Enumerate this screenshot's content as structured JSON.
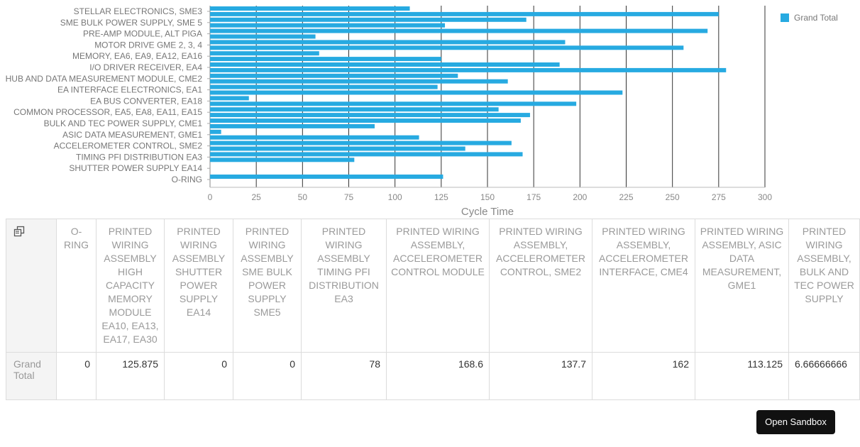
{
  "chart_data": {
    "type": "bar",
    "orientation": "horizontal",
    "xlabel": "Cycle Time",
    "xlim": [
      0,
      300
    ],
    "xticks": [
      0,
      25,
      50,
      75,
      100,
      125,
      150,
      175,
      200,
      225,
      250,
      275,
      300
    ],
    "grid": "vertical",
    "legend": "top-right",
    "bar_color": "#27aae1",
    "y_tick_labels": [
      "STELLAR ELECTRONICS, SME3",
      "SME BULK POWER SUPPLY, SME 5",
      "PRE-AMP MODULE, ALT PIGA",
      "MOTOR DRIVE GME 2, 3, 4",
      "MEMORY, EA6, EA9, EA12, EA16",
      "I/O DRIVER RECEIVER, EA4",
      "HUB AND DATA MEASUREMENT MODULE, CME2",
      "EA INTERFACE ELECTRONICS, EA1",
      "EA BUS CONVERTER, EA18",
      "COMMON PROCESSOR, EA5, EA8, EA11, EA15",
      "BULK AND TEC POWER SUPPLY, CME1",
      "ASIC DATA MEASUREMENT, GME1",
      "ACCELEROMETER CONTROL, SME2",
      "TIMING PFI DISTRIBUTION EA3",
      "SHUTTER POWER SUPPLY EA14",
      "O-RING"
    ],
    "series": [
      {
        "name": "Grand Total",
        "values": [
          108,
          275,
          171,
          127,
          269,
          57,
          192,
          256,
          59,
          125,
          189,
          279,
          134,
          161,
          123,
          223,
          21,
          198,
          156,
          173,
          168,
          89,
          6,
          113,
          163,
          138,
          169,
          78,
          0,
          0,
          126,
          0
        ]
      }
    ]
  },
  "table": {
    "headers": [
      "O-RING",
      "PRINTED WIRING ASSEMBLY HIGH CAPACITY MEMORY MODULE EA10, EA13, EA17, EA30",
      "PRINTED WIRING ASSEMBLY SHUTTER POWER SUPPLY EA14",
      "PRINTED WIRING ASSEMBLY SME BULK POWER SUPPLY SME5",
      "PRINTED WIRING ASSEMBLY TIMING PFI DISTRIBUTION EA3",
      "PRINTED WIRING ASSEMBLY, ACCELEROMETER CONTROL MODULE",
      "PRINTED WIRING ASSEMBLY, ACCELEROMETER CONTROL, SME2",
      "PRINTED WIRING ASSEMBLY, ACCELEROMETER INTERFACE, CME4",
      "PRINTED WIRING ASSEMBLY, ASIC DATA MEASUREMENT, GME1",
      "PRINTED WIRING ASSEMBLY, BULK AND TEC POWER SUPPLY"
    ],
    "row_label": "Grand Total",
    "values": [
      "0",
      "125.875",
      "0",
      "0",
      "78",
      "168.6",
      "137.7",
      "162",
      "113.125",
      "6.66666666"
    ]
  },
  "buttons": {
    "open_sandbox": "Open Sandbox"
  },
  "icons": {
    "corner": "pivot-toggle-icon"
  }
}
